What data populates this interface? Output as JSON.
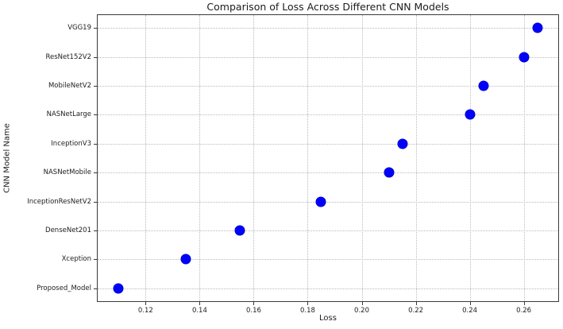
{
  "chart_data": {
    "type": "scatter",
    "orientation": "horizontal-categorical",
    "title": "Comparison of Loss Across Different CNN Models",
    "xlabel": "Loss",
    "ylabel": "CNN Model Name",
    "categories_top_to_bottom": [
      "VGG19",
      "ResNet152V2",
      "MobileNetV2",
      "NASNetLarge",
      "InceptionV3",
      "NASNetMobile",
      "InceptionResNetV2",
      "DenseNet201",
      "Xception",
      "Proposed_Model"
    ],
    "values": [
      0.265,
      0.26,
      0.245,
      0.24,
      0.215,
      0.21,
      0.185,
      0.155,
      0.135,
      0.11
    ],
    "x_ticks": [
      0.12,
      0.14,
      0.16,
      0.18,
      0.2,
      0.22,
      0.24,
      0.26
    ],
    "x_tick_labels": [
      "0.12",
      "0.14",
      "0.16",
      "0.18",
      "0.20",
      "0.22",
      "0.24",
      "0.26"
    ],
    "xlim": [
      0.10225,
      0.27275
    ],
    "grid": true,
    "grid_style": "dotted",
    "legend_position": "none",
    "marker_color": "#0000ff",
    "marker_edge_color": "#0000cc",
    "marker_px": 13,
    "grid_color": "#bbbbbb",
    "axis_color": "#3a3a3a",
    "text_color": "#1c1c1c",
    "background_color": "#ffffff"
  }
}
